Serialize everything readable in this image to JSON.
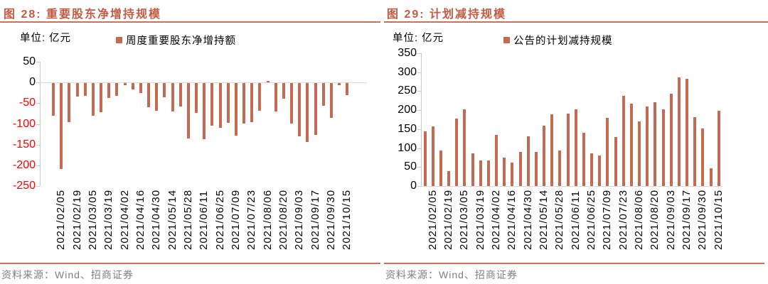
{
  "colors": {
    "accent_title": "#c25b43",
    "title_rule": "#c87258",
    "bar": "#c46a50",
    "axis_line": "#c9c9c9",
    "zero_line": "#d9d9d9",
    "negative_tick_text": "#ff0000",
    "tick_text": "#000000",
    "source_text": "#7f7f7f",
    "source_rule": "#cd7152"
  },
  "figures": [
    {
      "title": "图 28: 重要股东净增持规模",
      "unit": "单位: 亿元",
      "legend": "周度重要股东净增持额",
      "source": "资料来源：Wind、招商证券",
      "chart_data": {
        "type": "bar",
        "title": "重要股东净增持规模",
        "xlabel": "",
        "ylabel": "亿元",
        "ylim": [
          -250,
          50
        ],
        "yticks": [
          50,
          0,
          -50,
          -100,
          -150,
          -200,
          -250
        ],
        "negative_ticks_red": true,
        "grid": false,
        "legend": [
          "周度重要股东净增持额"
        ],
        "legend_position": "top",
        "x": [
          "",
          "2021/02/05",
          "",
          "2021/02/19",
          "",
          "2021/03/05",
          "",
          "2021/03/19",
          "",
          "2021/04/02",
          "",
          "2021/04/16",
          "",
          "2021/04/30",
          "",
          "2021/05/14",
          "",
          "2021/05/28",
          "",
          "2021/06/11",
          "",
          "2021/06/25",
          "",
          "2021/07/09",
          "",
          "2021/07/23",
          "",
          "2021/08/06",
          "",
          "2021/08/20",
          "",
          "2021/09/03",
          "",
          "2021/09/17",
          "",
          "2021/09/30",
          "",
          "2021/10/15"
        ],
        "values": [
          -80,
          -209,
          -95,
          -34,
          -32,
          -80,
          -72,
          -38,
          -33,
          -7,
          -17,
          -25,
          -59,
          -69,
          -36,
          -70,
          -58,
          -136,
          -73,
          -137,
          -105,
          -109,
          -98,
          -128,
          -100,
          -95,
          -68,
          3,
          -70,
          -39,
          -100,
          -130,
          -143,
          -126,
          -57,
          -85,
          -6,
          -30
        ]
      }
    },
    {
      "title": "图 29: 计划减持规模",
      "unit": "单位: 亿元",
      "legend": "公告的计划减持规模",
      "source": "资料来源：Wind、招商证券",
      "chart_data": {
        "type": "bar",
        "title": "计划减持规模",
        "xlabel": "",
        "ylabel": "亿元",
        "ylim": [
          0,
          350
        ],
        "yticks": [
          350,
          300,
          250,
          200,
          150,
          100,
          50,
          0
        ],
        "negative_ticks_red": false,
        "grid": false,
        "legend": [
          "公告的计划减持规模"
        ],
        "legend_position": "top",
        "x": [
          "",
          "2021/02/05",
          "",
          "2021/02/19",
          "",
          "2021/03/05",
          "",
          "2021/03/19",
          "",
          "2021/04/02",
          "",
          "2021/04/16",
          "",
          "2021/04/30",
          "",
          "2021/05/14",
          "",
          "2021/05/28",
          "",
          "2021/06/11",
          "",
          "2021/06/25",
          "",
          "2021/07/09",
          "",
          "2021/07/23",
          "",
          "2021/08/06",
          "",
          "2021/08/20",
          "",
          "2021/09/03",
          "",
          "2021/09/17",
          "",
          "2021/09/30",
          "",
          "2021/10/15"
        ],
        "values": [
          144,
          158,
          94,
          39,
          178,
          203,
          87,
          67,
          67,
          135,
          75,
          62,
          90,
          131,
          89,
          159,
          189,
          94,
          191,
          202,
          141,
          86,
          81,
          180,
          130,
          238,
          218,
          170,
          209,
          221,
          203,
          244,
          287,
          283,
          182,
          152,
          47,
          198
        ]
      }
    }
  ]
}
